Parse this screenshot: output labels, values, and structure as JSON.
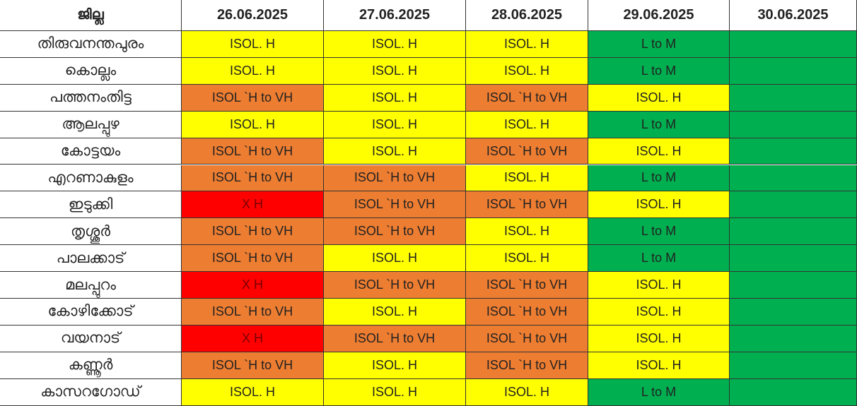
{
  "table": {
    "header": [
      "ജില്ല",
      "26.06.2025",
      "27.06.2025",
      "28.06.2025",
      "29.06.2025",
      "30.06.2025"
    ],
    "rows": [
      {
        "district": "തിരുവനന്തപുരം",
        "cells": [
          {
            "text": "ISOL. H",
            "color": "#ffff00"
          },
          {
            "text": "ISOL. H",
            "color": "#ffff00"
          },
          {
            "text": "ISOL. H",
            "color": "#ffff00"
          },
          {
            "text": "L to M",
            "color": "#00b050"
          },
          {
            "color": "#00b050"
          }
        ]
      },
      {
        "district": "കൊല്ലം",
        "cells": [
          {
            "text": "ISOL. H",
            "color": "#ffff00"
          },
          {
            "text": "ISOL. H",
            "color": "#ffff00"
          },
          {
            "text": "ISOL. H",
            "color": "#ffff00"
          },
          {
            "text": "L to M",
            "color": "#00b050"
          },
          {
            "color": "#00b050"
          }
        ]
      },
      {
        "district": "പത്തനംതിട്ട",
        "cells": [
          {
            "text": "ISOL `H to VH",
            "color": "#ed7d31"
          },
          {
            "text": "ISOL. H",
            "color": "#ffff00"
          },
          {
            "text": "ISOL `H to VH",
            "color": "#ed7d31"
          },
          {
            "text": "ISOL. H",
            "color": "#ffff00"
          },
          {
            "color": "#00b050"
          }
        ]
      },
      {
        "district": "ആലപ്പുഴ",
        "cells": [
          {
            "text": "ISOL. H",
            "color": "#ffff00"
          },
          {
            "text": "ISOL. H",
            "color": "#ffff00"
          },
          {
            "text": "ISOL. H",
            "color": "#ffff00"
          },
          {
            "text": "L to M",
            "color": "#00b050"
          },
          {
            "color": "#00b050"
          }
        ]
      },
      {
        "district": "കോട്ടയം",
        "cells": [
          {
            "text": "ISOL `H to VH",
            "color": "#ed7d31"
          },
          {
            "text": "ISOL. H",
            "color": "#ffff00"
          },
          {
            "text": "ISOL `H to VH",
            "color": "#ed7d31"
          },
          {
            "text": "ISOL. H",
            "color": "#ffff00"
          },
          {
            "color": "#00b050"
          }
        ]
      },
      {
        "district": "എറണാകുളം",
        "cells": [
          {
            "text": "ISOL `H to VH",
            "color": "#ed7d31"
          },
          {
            "text": "ISOL `H to VH",
            "color": "#ed7d31"
          },
          {
            "text": "ISOL. H",
            "color": "#ffff00"
          },
          {
            "text": "L to M",
            "color": "#00b050"
          },
          {
            "color": "#00b050"
          }
        ]
      },
      {
        "district": "ഇടുക്കി",
        "cells": [
          {
            "text": "X H",
            "color": "#ff0000"
          },
          {
            "text": "ISOL `H to VH",
            "color": "#ed7d31"
          },
          {
            "text": "ISOL `H to VH",
            "color": "#ed7d31"
          },
          {
            "text": "ISOL. H",
            "color": "#ffff00"
          },
          {
            "color": "#00b050"
          }
        ]
      },
      {
        "district": "തൃശ്ശൂർ",
        "cells": [
          {
            "text": "ISOL `H to VH",
            "color": "#ed7d31"
          },
          {
            "text": "ISOL `H to VH",
            "color": "#ed7d31"
          },
          {
            "text": "ISOL. H",
            "color": "#ffff00"
          },
          {
            "text": "L to M",
            "color": "#00b050"
          },
          {
            "color": "#00b050"
          }
        ]
      },
      {
        "district": "പാലക്കാട്",
        "cells": [
          {
            "text": "ISOL `H to VH",
            "color": "#ed7d31"
          },
          {
            "text": "ISOL. H",
            "color": "#ffff00"
          },
          {
            "text": "ISOL. H",
            "color": "#ffff00"
          },
          {
            "text": "L to M",
            "color": "#00b050"
          },
          {
            "color": "#00b050"
          }
        ]
      },
      {
        "district": "മലപ്പുറം",
        "cells": [
          {
            "text": "X H",
            "color": "#ff0000"
          },
          {
            "text": "ISOL `H to VH",
            "color": "#ed7d31"
          },
          {
            "text": "ISOL `H to VH",
            "color": "#ed7d31"
          },
          {
            "text": "ISOL. H",
            "color": "#ffff00"
          },
          {
            "color": "#00b050"
          }
        ]
      },
      {
        "district": "കോഴിക്കോട്",
        "cells": [
          {
            "text": "ISOL `H to VH",
            "color": "#ed7d31"
          },
          {
            "text": "ISOL. H",
            "color": "#ffff00"
          },
          {
            "text": "ISOL `H to VH",
            "color": "#ed7d31"
          },
          {
            "text": "ISOL. H",
            "color": "#ffff00"
          },
          {
            "color": "#00b050"
          }
        ]
      },
      {
        "district": "വയനാട്",
        "cells": [
          {
            "text": "X H",
            "color": "#ff0000"
          },
          {
            "text": "ISOL `H to VH",
            "color": "#ed7d31"
          },
          {
            "text": "ISOL `H to VH",
            "color": "#ed7d31"
          },
          {
            "text": "ISOL. H",
            "color": "#ffff00"
          },
          {
            "color": "#00b050"
          }
        ]
      },
      {
        "district": "കണ്ണൂർ",
        "cells": [
          {
            "text": "ISOL `H to VH",
            "color": "#ed7d31"
          },
          {
            "text": "ISOL. H",
            "color": "#ffff00"
          },
          {
            "text": "ISOL `H to VH",
            "color": "#ed7d31"
          },
          {
            "text": "ISOL. H",
            "color": "#ffff00"
          },
          {
            "color": "#00b050"
          }
        ]
      },
      {
        "district": "കാസറഗോഡ്",
        "cells": [
          {
            "text": "ISOL. H",
            "color": "#ffff00"
          },
          {
            "text": "ISOL. H",
            "color": "#ffff00"
          },
          {
            "text": "ISOL. H",
            "color": "#ffff00"
          },
          {
            "text": "L to M",
            "color": "#00b050"
          },
          {
            "color": "#00b050"
          }
        ]
      }
    ]
  }
}
